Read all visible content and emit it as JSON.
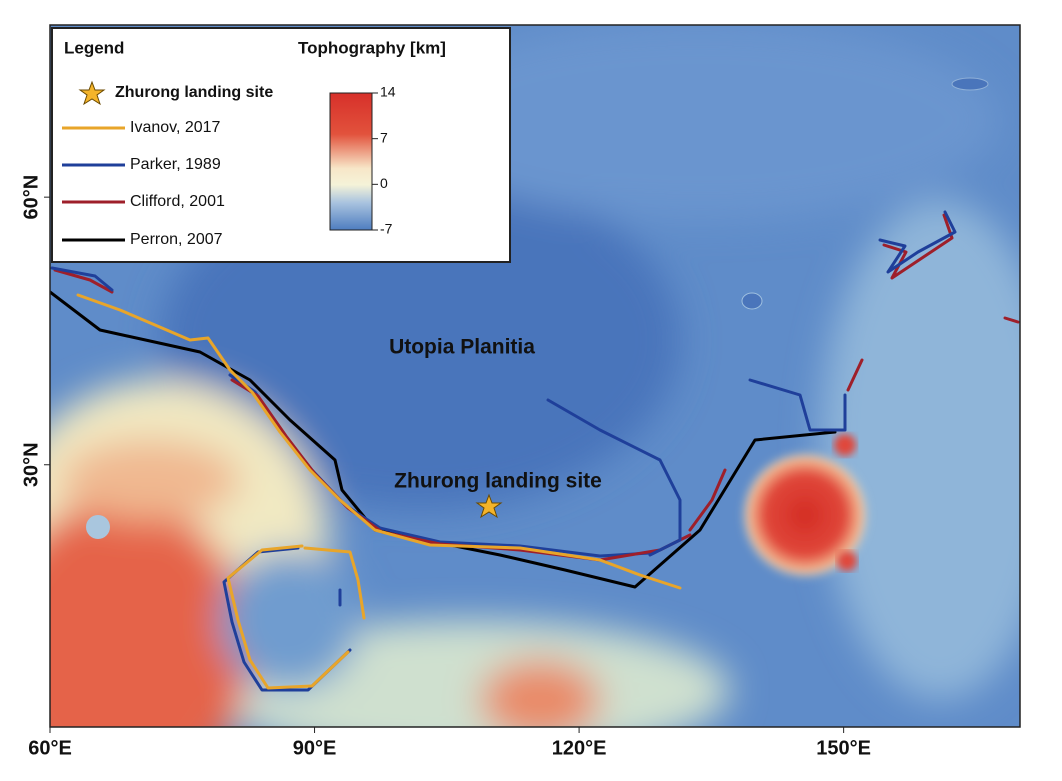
{
  "map": {
    "legend": {
      "title": "Legend",
      "site": "Zhurong landing site",
      "entries": [
        "Ivanov, 2017",
        "Parker, 1989",
        "Clifford, 2001",
        "Perron, 2007"
      ]
    },
    "colorbar": {
      "title": "Tophography [km]",
      "ticks": [
        14,
        7,
        0,
        -7
      ]
    },
    "labels": {
      "region": "Utopia Planitia",
      "site": "Zhurong landing site"
    },
    "axes": {
      "xlim": [
        60,
        170
      ],
      "ylim": [
        0.6,
        79.3
      ],
      "xticks": [
        {
          "value": 60,
          "label": "60°E"
        },
        {
          "value": 90,
          "label": "90°E"
        },
        {
          "value": 120,
          "label": "120°E"
        },
        {
          "value": 150,
          "label": "150°E"
        }
      ],
      "yticks": [
        {
          "value": 60,
          "label": "60°N"
        },
        {
          "value": 30,
          "label": "30°N"
        }
      ]
    }
  }
}
